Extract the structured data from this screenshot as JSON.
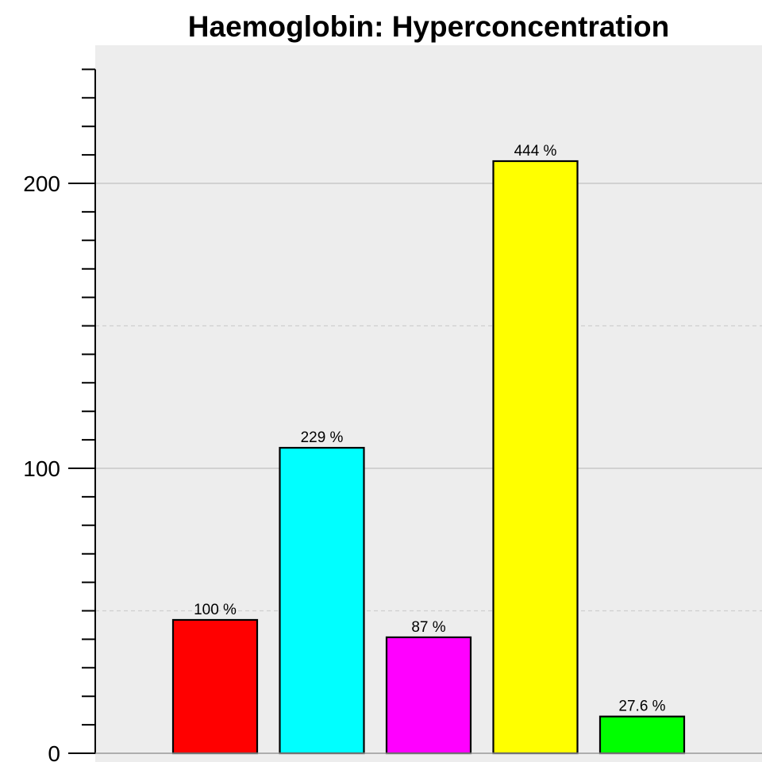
{
  "chart_data": {
    "type": "bar",
    "title": "Haemoglobin: Hyperconcentration",
    "xlabel": "",
    "ylabel": "",
    "ylim": [
      0,
      240
    ],
    "major_ticks": [
      0,
      100,
      200
    ],
    "minor_tick_step": 10,
    "grid": {
      "major": "solid",
      "half": "dashed"
    },
    "background": "#ededed",
    "categories": [
      "",
      "",
      "",
      "",
      ""
    ],
    "values": [
      46.8,
      107.2,
      40.7,
      207.8,
      12.9
    ],
    "labels": [
      "100 %",
      "229 %",
      "87 %",
      "444 %",
      "27.6 %"
    ],
    "colors": [
      "#ff0000",
      "#00ffff",
      "#ff00ff",
      "#ffff00",
      "#00ff00"
    ]
  }
}
